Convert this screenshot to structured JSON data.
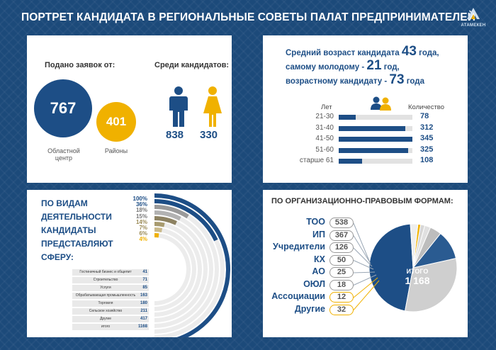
{
  "header": {
    "title": "ПОРТРЕТ КАНДИДАТА В РЕГИОНАЛЬНЫЕ СОВЕТЫ ПАЛАТ ПРЕДПРИНИМАТЕЛЕЙ",
    "logo_text": "АТАМЕКЕН"
  },
  "colors": {
    "navy": "#1d4e86",
    "gold": "#f0b100",
    "gray": "#bdbdbd",
    "background": "#1c4a7a"
  },
  "applications": {
    "label": "Подано заявок от:",
    "regional_value": "767",
    "regional_label": "Областной центр",
    "districts_value": "401",
    "districts_label": "Районы"
  },
  "candidates": {
    "label": "Среди кандидатов:",
    "male": "838",
    "female": "330",
    "male_icon": "man-icon",
    "female_icon": "woman-icon"
  },
  "age_summary": {
    "line1_pre": "Средний возраст кандидата ",
    "line1_num": "43",
    "line1_post": " года,",
    "line2_pre": "самому молодому - ",
    "line2_num": "21",
    "line2_post": " год,",
    "line3_pre": "возрастному кандидату - ",
    "line3_num": "73",
    "line3_post": " года"
  },
  "chart_data": [
    {
      "type": "bar",
      "title": "",
      "xlabel": "Лет",
      "ylabel": "Количество",
      "categories": [
        "21-30",
        "31-40",
        "41-50",
        "51-60",
        "старше 61"
      ],
      "values": [
        78,
        312,
        345,
        325,
        108
      ],
      "xlim": [
        0,
        345
      ],
      "grid": false
    },
    {
      "type": "bar",
      "title": "ПО ВИДАМ ДЕЯТЕЛЬНОСТИ КАНДИДАТЫ ПРЕДСТАВЛЯЮТ СФЕРУ:",
      "categories": [
        "Гостиничный бизнес и общепит",
        "Строительство",
        "Услуги",
        "Обрабатывающая промышленность",
        "Торговля",
        "Сельское хозяйство",
        "Другие",
        "итого"
      ],
      "values": [
        41,
        71,
        85,
        163,
        180,
        211,
        417,
        1168
      ],
      "percent_labels": [
        "100%",
        "36%",
        "18%",
        "15%",
        "14%",
        "7%",
        "6%",
        "4%"
      ],
      "percent_values": [
        100,
        36,
        18,
        15,
        14,
        7,
        6,
        4
      ]
    },
    {
      "type": "pie",
      "title": "ПО ОРГАНИЗАЦИОННО-ПРАВОВЫМ ФОРМАМ:",
      "categories": [
        "ТОО",
        "ИП",
        "Учредители",
        "КХ",
        "АО",
        "ОЮЛ",
        "Ассоциации",
        "Другие"
      ],
      "values": [
        538,
        367,
        126,
        50,
        25,
        18,
        12,
        32
      ],
      "total_label": "ИТОГО",
      "total_value": "1 168"
    }
  ]
}
